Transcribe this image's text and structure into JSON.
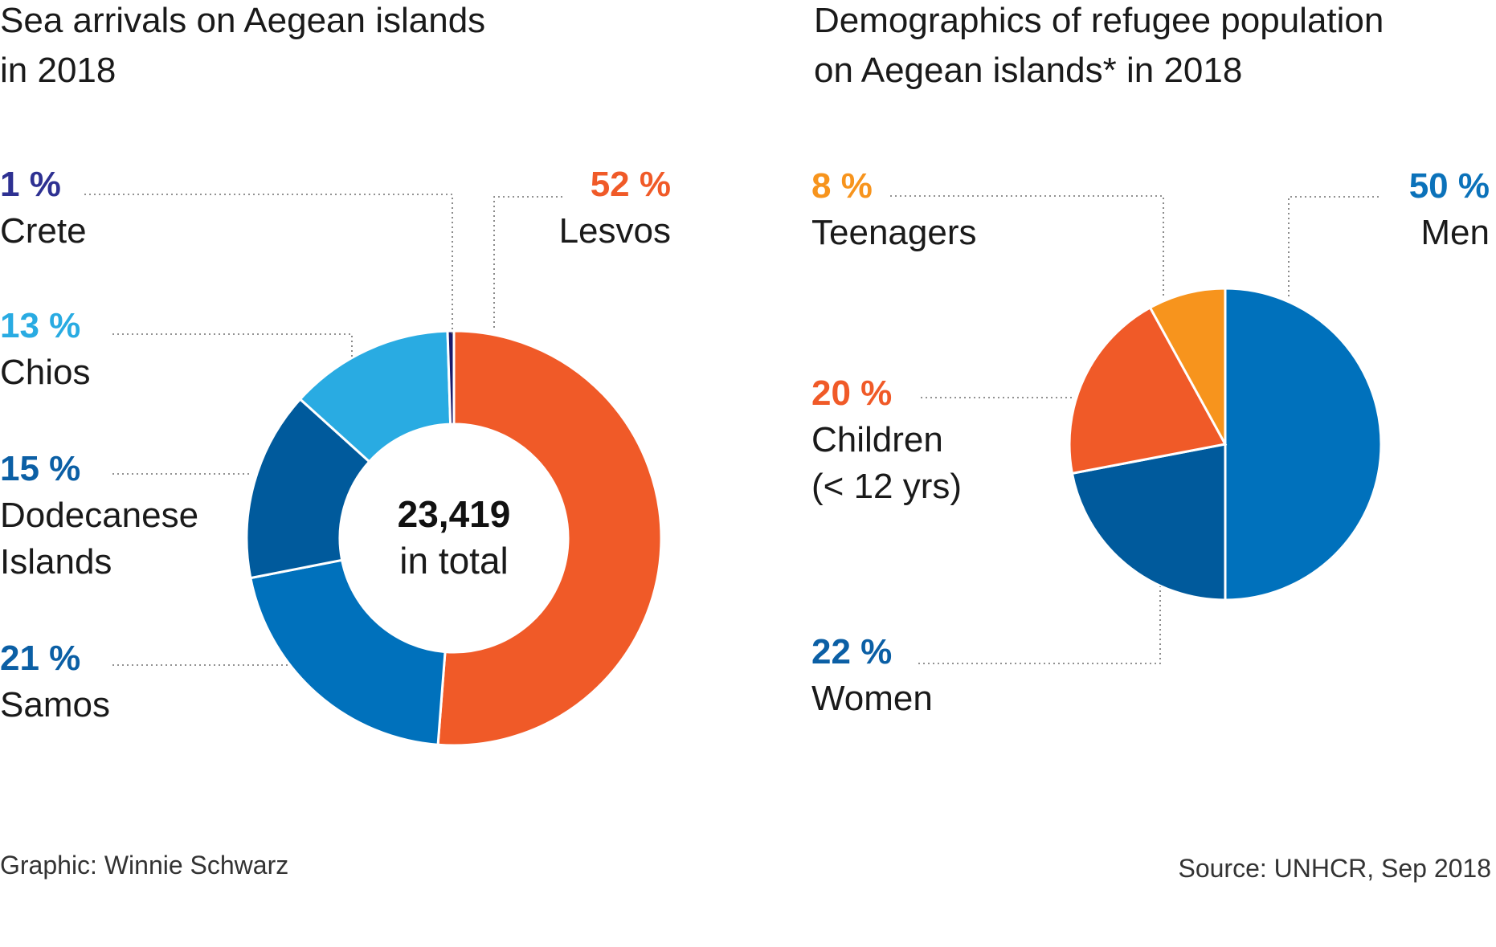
{
  "chart_data": [
    {
      "type": "pie",
      "subtype": "donut",
      "title": [
        "Sea arrivals on Aegean islands",
        "in 2018"
      ],
      "center": {
        "value": "23,419",
        "label": "in total"
      },
      "slices": [
        {
          "name": "Lesvos",
          "pct_label": "52 %",
          "value": 52,
          "color": "#F05A28"
        },
        {
          "name": "Samos",
          "pct_label": "21 %",
          "value": 21,
          "color": "#0071BC"
        },
        {
          "name": "Dodecanese Islands",
          "label_lines": [
            "Dodecanese",
            "Islands"
          ],
          "pct_label": "15 %",
          "value": 15,
          "color": "#005A9C"
        },
        {
          "name": "Chios",
          "pct_label": "13 %",
          "value": 13,
          "color": "#29ABE2"
        },
        {
          "name": "Crete",
          "pct_label": "1 %",
          "value": 0.5,
          "color": "#1B1B6B"
        }
      ]
    },
    {
      "type": "pie",
      "title": [
        "Demographics of refugee population",
        "on Aegean islands* in 2018"
      ],
      "slices": [
        {
          "name": "Men",
          "pct_label": "50 %",
          "value": 50,
          "color": "#0071BC"
        },
        {
          "name": "Women",
          "pct_label": "22 %",
          "value": 22,
          "color": "#005A9C"
        },
        {
          "name": "Children (< 12 yrs)",
          "label_lines": [
            "Children",
            "(< 12 yrs)"
          ],
          "pct_label": "20 %",
          "value": 20,
          "color": "#F05A28"
        },
        {
          "name": "Teenagers",
          "pct_label": "8 %",
          "value": 8,
          "color": "#F7941D"
        }
      ]
    }
  ],
  "footer": {
    "credit": "Graphic: Winnie Schwarz",
    "source": "Source: UNHCR, Sep 2018"
  },
  "colors": {
    "crete_label": "#2E3192",
    "chios_label": "#29ABE2",
    "dodecanese_label": "#0B5FA5",
    "samos_label": "#0B5FA5",
    "lesvos_label": "#F05A28",
    "teenagers_label": "#F7941D",
    "children_label": "#F05A28",
    "women_label": "#0B5FA5",
    "men_label": "#0B72BA"
  }
}
